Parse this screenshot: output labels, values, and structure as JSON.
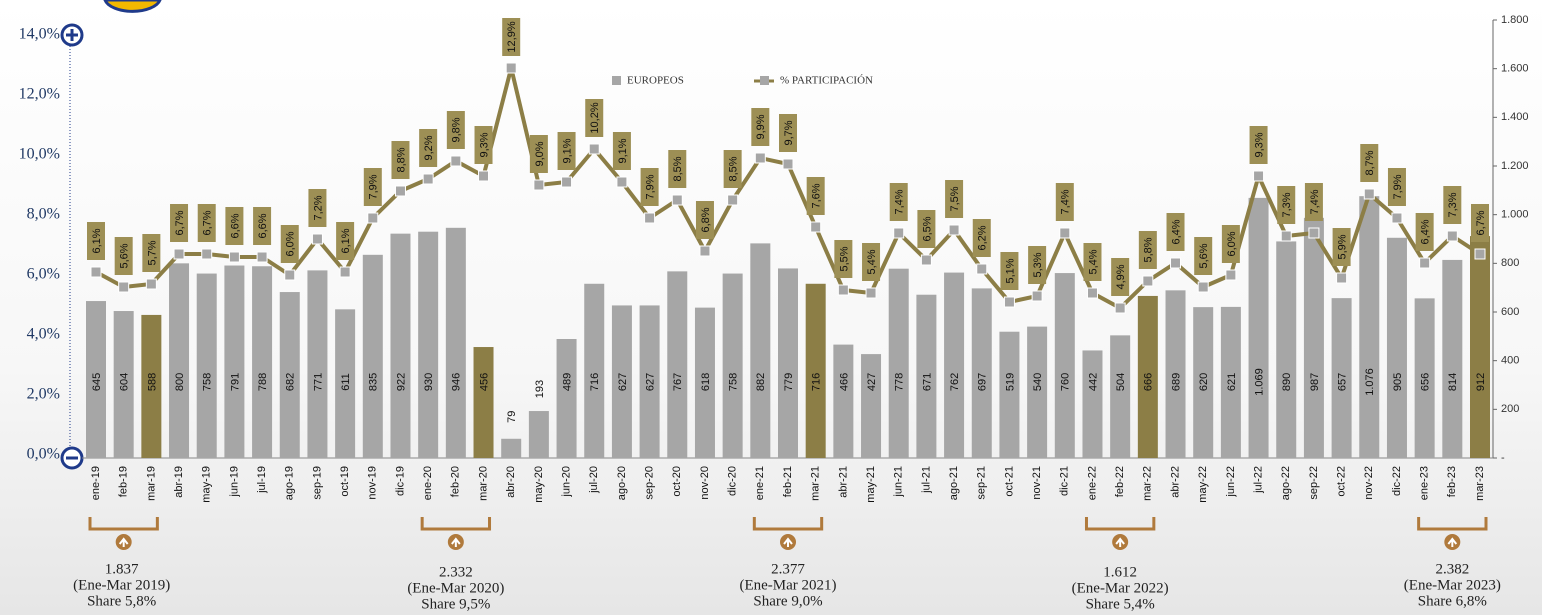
{
  "chart_data": {
    "type": "bar_line",
    "categories": [
      "ene-19",
      "feb-19",
      "mar-19",
      "abr-19",
      "may-19",
      "jun-19",
      "jul-19",
      "ago-19",
      "sep-19",
      "oct-19",
      "nov-19",
      "dic-19",
      "ene-20",
      "feb-20",
      "mar-20",
      "abr-20",
      "may-20",
      "jun-20",
      "jul-20",
      "ago-20",
      "sep-20",
      "oct-20",
      "nov-20",
      "dic-20",
      "ene-21",
      "feb-21",
      "mar-21",
      "abr-21",
      "may-21",
      "jun-21",
      "jul-21",
      "ago-21",
      "sep-21",
      "oct-21",
      "nov-21",
      "dic-21",
      "ene-22",
      "feb-22",
      "mar-22",
      "abr-22",
      "may-22",
      "jun-22",
      "jul-22",
      "ago-22",
      "sep-22",
      "oct-22",
      "nov-22",
      "dic-22",
      "ene-23",
      "feb-23",
      "mar-23"
    ],
    "series": [
      {
        "name": "EUROPEOS",
        "type": "bar",
        "axis": "y2",
        "color": "#a6a6a6",
        "colors": [
          "#a6a6a6",
          "#a6a6a6",
          "#8c7e46",
          "#a6a6a6",
          "#a6a6a6",
          "#a6a6a6",
          "#a6a6a6",
          "#a6a6a6",
          "#a6a6a6",
          "#a6a6a6",
          "#a6a6a6",
          "#a6a6a6",
          "#a6a6a6",
          "#a6a6a6",
          "#8c7e46",
          "#a6a6a6",
          "#a6a6a6",
          "#a6a6a6",
          "#a6a6a6",
          "#a6a6a6",
          "#a6a6a6",
          "#a6a6a6",
          "#a6a6a6",
          "#a6a6a6",
          "#a6a6a6",
          "#a6a6a6",
          "#8c7e46",
          "#a6a6a6",
          "#a6a6a6",
          "#a6a6a6",
          "#a6a6a6",
          "#a6a6a6",
          "#a6a6a6",
          "#a6a6a6",
          "#a6a6a6",
          "#a6a6a6",
          "#a6a6a6",
          "#a6a6a6",
          "#8c7e46",
          "#a6a6a6",
          "#a6a6a6",
          "#a6a6a6",
          "#a6a6a6",
          "#a6a6a6",
          "#a6a6a6",
          "#a6a6a6",
          "#a6a6a6",
          "#a6a6a6",
          "#a6a6a6",
          "#a6a6a6",
          "#8c7e46"
        ],
        "values": [
          645,
          604,
          588,
          800,
          758,
          791,
          788,
          682,
          771,
          611,
          835,
          922,
          930,
          946,
          456,
          79,
          193,
          489,
          716,
          627,
          627,
          767,
          618,
          758,
          882,
          779,
          716,
          466,
          427,
          778,
          671,
          762,
          697,
          519,
          540,
          760,
          442,
          504,
          666,
          689,
          620,
          621,
          1069,
          890,
          987,
          657,
          1076,
          905,
          656,
          814,
          912
        ],
        "value_labels": [
          "645",
          "604",
          "588",
          "800",
          "758",
          "791",
          "788",
          "682",
          "771",
          "611",
          "835",
          "922",
          "930",
          "946",
          "456",
          "79",
          "193",
          "489",
          "716",
          "627",
          "627",
          "767",
          "618",
          "758",
          "882",
          "779",
          "716",
          "466",
          "427",
          "778",
          "671",
          "762",
          "697",
          "519",
          "540",
          "760",
          "442",
          "504",
          "666",
          "689",
          "620",
          "621",
          "1.069",
          "890",
          "987",
          "657",
          "1.076",
          "905",
          "656",
          "814",
          "912"
        ]
      },
      {
        "name": "% PARTICIPACIÓN",
        "type": "line",
        "axis": "y",
        "color": "#8c7e46",
        "marker_color": "#a6a6a6",
        "label_color": "#9d8f55",
        "values": [
          6.1,
          5.6,
          5.7,
          6.7,
          6.7,
          6.6,
          6.6,
          6.0,
          7.2,
          6.1,
          7.9,
          8.8,
          9.2,
          9.8,
          9.3,
          12.9,
          9.0,
          9.1,
          10.2,
          9.1,
          7.9,
          8.5,
          6.8,
          8.5,
          9.9,
          9.7,
          7.6,
          5.5,
          5.4,
          7.4,
          6.5,
          7.5,
          6.2,
          5.1,
          5.3,
          7.4,
          5.4,
          4.9,
          5.8,
          6.4,
          5.6,
          6.0,
          9.3,
          7.3,
          7.4,
          5.9,
          8.7,
          7.9,
          6.4,
          7.3,
          6.7
        ],
        "value_labels": [
          "6,1%",
          "5,6%",
          "5,7%",
          "6,7%",
          "6,7%",
          "6,6%",
          "6,6%",
          "6,0%",
          "7,2%",
          "6,1%",
          "7,9%",
          "8,8%",
          "9,2%",
          "9,8%",
          "9,3%",
          "12,9%",
          "9,0%",
          "9,1%",
          "10,2%",
          "9,1%",
          "7,9%",
          "8,5%",
          "6,8%",
          "8,5%",
          "9,9%",
          "9,7%",
          "7,6%",
          "5,5%",
          "5,4%",
          "7,4%",
          "6,5%",
          "7,5%",
          "6,2%",
          "5,1%",
          "5,3%",
          "7,4%",
          "5,4%",
          "4,9%",
          "5,8%",
          "6,4%",
          "5,6%",
          "6,0%",
          "9,3%",
          "7,3%",
          "7,4%",
          "5,9%",
          "8,7%",
          "7,9%",
          "6,4%",
          "7,3%",
          "6,7%"
        ]
      }
    ],
    "ylim": [
      0,
      14
    ],
    "yticks": [
      {
        "value": 0,
        "label": "0,0%"
      },
      {
        "value": 2,
        "label": "2,0%"
      },
      {
        "value": 4,
        "label": "4,0%"
      },
      {
        "value": 6,
        "label": "6,0%"
      },
      {
        "value": 8,
        "label": "8,0%"
      },
      {
        "value": 10,
        "label": "10,0%"
      },
      {
        "value": 12,
        "label": "12,0%"
      },
      {
        "value": 14,
        "label": "14,0%"
      }
    ],
    "y2lim": [
      0,
      1800
    ],
    "y2ticks": [
      {
        "value": 0,
        "label": "-"
      },
      200,
      400,
      600,
      800,
      {
        "value": 1000,
        "label": "1.000"
      },
      {
        "value": 1200,
        "label": "1.200"
      },
      {
        "value": 1400,
        "label": "1.400"
      },
      {
        "value": 1600,
        "label": "1.600"
      },
      {
        "value": 1800,
        "label": "1.800"
      }
    ],
    "legend": "top",
    "annotations": [
      {
        "lines": [
          "1.837",
          "(Ene-Mar 2019)",
          "Share 5,8%"
        ]
      },
      {
        "lines": [
          "2.332",
          "(Ene-Mar 2020)",
          "Share 9,5%"
        ]
      },
      {
        "lines": [
          "2.377",
          "(Ene-Mar 2021)",
          "Share 9,0%"
        ]
      },
      {
        "lines": [
          "1.612",
          "(Ene-Mar 2022)",
          "Share 5,4%"
        ]
      },
      {
        "lines": [
          "2.382",
          "(Ene-Mar 2023)",
          "Share 6,8%"
        ]
      }
    ]
  }
}
